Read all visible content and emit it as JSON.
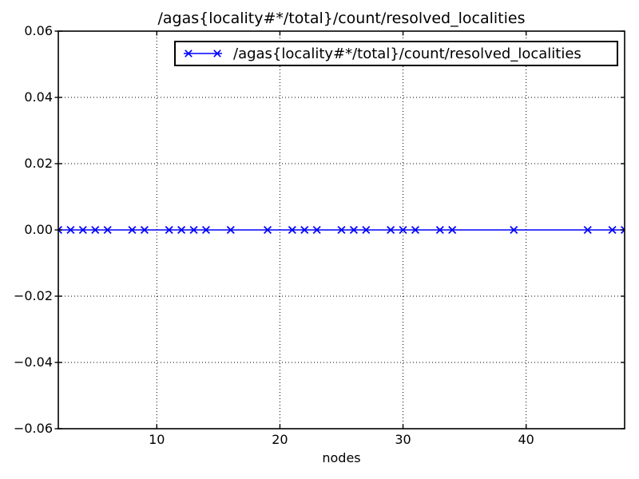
{
  "title": "/agas{locality#*/total}/count/resolved_localities",
  "axes": {
    "xlabel": "nodes",
    "ylabel": ""
  },
  "legend": {
    "label": "/agas{locality#*/total}/count/resolved_localities",
    "position": "upper right"
  },
  "colors": {
    "series": "#0000ff",
    "axis": "#000000",
    "grid": "#000000",
    "background": "#ffffff",
    "text": "#000000"
  },
  "chart_data": {
    "type": "line",
    "title": "/agas{locality#*/total}/count/resolved_localities",
    "xlabel": "nodes",
    "ylabel": "",
    "xlim": [
      2,
      48
    ],
    "ylim": [
      -0.06,
      0.06
    ],
    "grid": true,
    "legend_position": "upper right",
    "xticks": {
      "values": [
        10,
        20,
        30,
        40
      ],
      "labels": [
        "10",
        "20",
        "30",
        "40"
      ]
    },
    "yticks": {
      "values": [
        -0.06,
        -0.04,
        -0.02,
        0,
        0.02,
        0.04,
        0.06
      ],
      "labels": [
        "−0.06",
        "−0.04",
        "−0.02",
        "0.00",
        "0.02",
        "0.04",
        "0.06"
      ]
    },
    "series": [
      {
        "name": "/agas{locality#*/total}/count/resolved_localities",
        "color": "#0000ff",
        "marker": "x",
        "x": [
          2,
          3,
          4,
          5,
          6,
          8,
          9,
          11,
          12,
          13,
          14,
          16,
          19,
          21,
          22,
          23,
          25,
          26,
          27,
          29,
          30,
          31,
          33,
          34,
          39,
          45,
          47,
          48
        ],
        "y": [
          0,
          0,
          0,
          0,
          0,
          0,
          0,
          0,
          0,
          0,
          0,
          0,
          0,
          0,
          0,
          0,
          0,
          0,
          0,
          0,
          0,
          0,
          0,
          0,
          0,
          0,
          0,
          0
        ]
      }
    ]
  }
}
